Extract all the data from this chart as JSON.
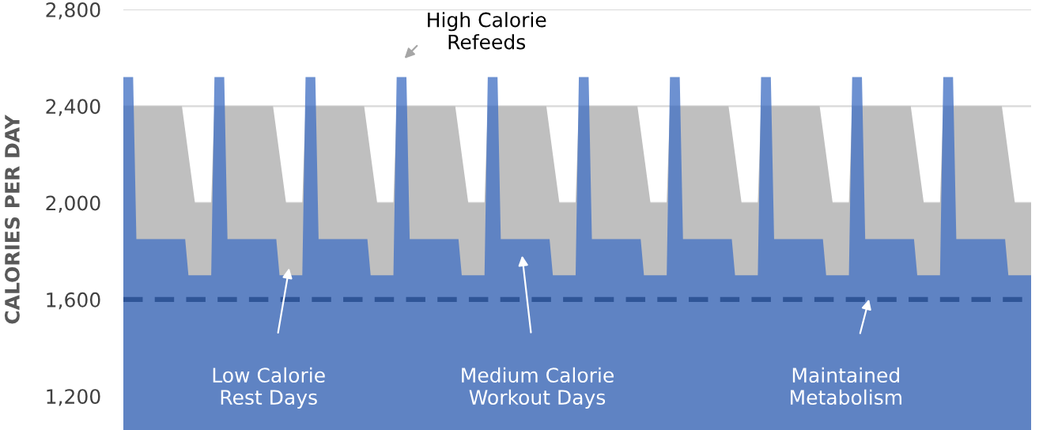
{
  "chart_data": {
    "type": "area",
    "ylabel": "CALORIES PER DAY",
    "categories": [
      null,
      null,
      null,
      null,
      null,
      null,
      null,
      null,
      null,
      null,
      null,
      null,
      null,
      null,
      null,
      null,
      null,
      null,
      null,
      null,
      null,
      null,
      null,
      null,
      null,
      null,
      null,
      null,
      null,
      null,
      null,
      null,
      null,
      null,
      null,
      null,
      null,
      null,
      null,
      null,
      null,
      null,
      null,
      null,
      null,
      null,
      null,
      null,
      null,
      null,
      null,
      null,
      null,
      null,
      null,
      null,
      null,
      null,
      null,
      null,
      null,
      null,
      null,
      null,
      null,
      null,
      null,
      null,
      null,
      null,
      null,
      null,
      null,
      null,
      null,
      null,
      null,
      null,
      null,
      null,
      null,
      null,
      null,
      null,
      null,
      null,
      null,
      null,
      null,
      null,
      null,
      null,
      null,
      null,
      null,
      null,
      null,
      null,
      null,
      null,
      null,
      null,
      null,
      null,
      null,
      null,
      null,
      null,
      null,
      null,
      null,
      null,
      null,
      null,
      null,
      null,
      null,
      null,
      null,
      null,
      null,
      null,
      null,
      null,
      null,
      null,
      null,
      null,
      null,
      null,
      null,
      null,
      null,
      null,
      null,
      null,
      null,
      null,
      null,
      null,
      null,
      null,
      null,
      null,
      null,
      null,
      null,
      null,
      null,
      null,
      null,
      null,
      null,
      null,
      null,
      null,
      null,
      null,
      null,
      null,
      null,
      null,
      null,
      null,
      null,
      null,
      null,
      null,
      null,
      null,
      null,
      null,
      null,
      null,
      null,
      null,
      null,
      null,
      null,
      null,
      null,
      null,
      null,
      null,
      null,
      null,
      null,
      null,
      null,
      null,
      null,
      null,
      null,
      null,
      null,
      null,
      null,
      null,
      null,
      null,
      null,
      null,
      null,
      null,
      null,
      null,
      null,
      null,
      null,
      null,
      null,
      null,
      null,
      null,
      null,
      null,
      null,
      null,
      null,
      null,
      null,
      null,
      null,
      null,
      null,
      null,
      null,
      null,
      null,
      null,
      null,
      null,
      null,
      null,
      null,
      null,
      null,
      null,
      null,
      null,
      null,
      null,
      null,
      null,
      null,
      null,
      null,
      null,
      null,
      null,
      null,
      null,
      null,
      null,
      null,
      null,
      null,
      null,
      null,
      null,
      null,
      null,
      null,
      null,
      null,
      null,
      null,
      null,
      null,
      null,
      null,
      null,
      null,
      null,
      null,
      null,
      null,
      null,
      null,
      null
    ],
    "ylim": [
      1060,
      2800
    ],
    "yticks": [
      {
        "value": 1200,
        "label": "1,200"
      },
      {
        "value": 1600,
        "label": "1,600"
      },
      {
        "value": 2000,
        "label": "2,000"
      },
      {
        "value": 2400,
        "label": "2,400"
      },
      {
        "value": 2800,
        "label": "2,800"
      }
    ],
    "tick_labels": "y",
    "grid": "y",
    "series": [
      {
        "color": "#bfbfbf",
        "values": [
          2400,
          2400,
          2400,
          2400,
          2400,
          2400,
          2400,
          2400,
          2400,
          2400,
          2400,
          2400,
          2400,
          2400,
          2400,
          2400,
          2400,
          2400,
          2400,
          2300,
          2200,
          2100,
          2000,
          2000,
          2000,
          2000,
          2000,
          2000,
          2400,
          2400,
          2400,
          2400,
          2400,
          2400,
          2400,
          2400,
          2400,
          2400,
          2400,
          2400,
          2400,
          2400,
          2400,
          2400,
          2400,
          2400,
          2400,
          2300,
          2200,
          2100,
          2000,
          2000,
          2000,
          2000,
          2000,
          2000,
          2400,
          2400,
          2400,
          2400,
          2400,
          2400,
          2400,
          2400,
          2400,
          2400,
          2400,
          2400,
          2400,
          2400,
          2400,
          2400,
          2400,
          2400,
          2400,
          2300,
          2200,
          2100,
          2000,
          2000,
          2000,
          2000,
          2000,
          2000,
          2400,
          2400,
          2400,
          2400,
          2400,
          2400,
          2400,
          2400,
          2400,
          2400,
          2400,
          2400,
          2400,
          2400,
          2400,
          2400,
          2400,
          2400,
          2400,
          2300,
          2200,
          2100,
          2000,
          2000,
          2000,
          2000,
          2000,
          2000,
          2400,
          2400,
          2400,
          2400,
          2400,
          2400,
          2400,
          2400,
          2400,
          2400,
          2400,
          2400,
          2400,
          2400,
          2400,
          2400,
          2400,
          2400,
          2400,
          2300,
          2200,
          2100,
          2000,
          2000,
          2000,
          2000,
          2000,
          2000,
          2400,
          2400,
          2400,
          2400,
          2400,
          2400,
          2400,
          2400,
          2400,
          2400,
          2400,
          2400,
          2400,
          2400,
          2400,
          2400,
          2400,
          2400,
          2400,
          2300,
          2200,
          2100,
          2000,
          2000,
          2000,
          2000,
          2000,
          2000,
          2400,
          2400,
          2400,
          2400,
          2400,
          2400,
          2400,
          2400,
          2400,
          2400,
          2400,
          2400,
          2400,
          2400,
          2400,
          2400,
          2400,
          2400,
          2400,
          2300,
          2200,
          2100,
          2000,
          2000,
          2000,
          2000,
          2000,
          2000,
          2400,
          2400,
          2400,
          2400,
          2400,
          2400,
          2400,
          2400,
          2400,
          2400,
          2400,
          2400,
          2400,
          2400,
          2400,
          2400,
          2400,
          2400,
          2400,
          2300,
          2200,
          2100,
          2000,
          2000,
          2000,
          2000,
          2000,
          2000,
          2400,
          2400,
          2400,
          2400,
          2400,
          2400,
          2400,
          2400,
          2400,
          2400,
          2400,
          2400,
          2400,
          2400,
          2400,
          2400,
          2400,
          2400,
          2400,
          2300,
          2200,
          2100,
          2000,
          2000,
          2000,
          2000,
          2000,
          2000,
          2400,
          2400,
          2400,
          2400,
          2400,
          2400,
          2400,
          2400,
          2400,
          2400,
          2400,
          2400,
          2400,
          2400,
          2400,
          2400,
          2400,
          2400,
          2400,
          2300,
          2200,
          2100,
          2000,
          2000,
          2000,
          2000,
          2000,
          2000
        ]
      },
      {
        "color": "#4472c4",
        "values": [
          2520,
          2520,
          2520,
          2520,
          1850,
          1850,
          1850,
          1850,
          1850,
          1850,
          1850,
          1850,
          1850,
          1850,
          1850,
          1850,
          1850,
          1850,
          1850,
          1850,
          1700,
          1700,
          1700,
          1700,
          1700,
          1700,
          1700,
          1700,
          2520,
          2520,
          2520,
          2520,
          1850,
          1850,
          1850,
          1850,
          1850,
          1850,
          1850,
          1850,
          1850,
          1850,
          1850,
          1850,
          1850,
          1850,
          1850,
          1850,
          1700,
          1700,
          1700,
          1700,
          1700,
          1700,
          1700,
          1700,
          2520,
          2520,
          2520,
          2520,
          1850,
          1850,
          1850,
          1850,
          1850,
          1850,
          1850,
          1850,
          1850,
          1850,
          1850,
          1850,
          1850,
          1850,
          1850,
          1850,
          1700,
          1700,
          1700,
          1700,
          1700,
          1700,
          1700,
          1700,
          2520,
          2520,
          2520,
          2520,
          1850,
          1850,
          1850,
          1850,
          1850,
          1850,
          1850,
          1850,
          1850,
          1850,
          1850,
          1850,
          1850,
          1850,
          1850,
          1850,
          1700,
          1700,
          1700,
          1700,
          1700,
          1700,
          1700,
          1700,
          2520,
          2520,
          2520,
          2520,
          1850,
          1850,
          1850,
          1850,
          1850,
          1850,
          1850,
          1850,
          1850,
          1850,
          1850,
          1850,
          1850,
          1850,
          1850,
          1850,
          1700,
          1700,
          1700,
          1700,
          1700,
          1700,
          1700,
          1700,
          2520,
          2520,
          2520,
          2520,
          1850,
          1850,
          1850,
          1850,
          1850,
          1850,
          1850,
          1850,
          1850,
          1850,
          1850,
          1850,
          1850,
          1850,
          1850,
          1850,
          1700,
          1700,
          1700,
          1700,
          1700,
          1700,
          1700,
          1700,
          2520,
          2520,
          2520,
          2520,
          1850,
          1850,
          1850,
          1850,
          1850,
          1850,
          1850,
          1850,
          1850,
          1850,
          1850,
          1850,
          1850,
          1850,
          1850,
          1850,
          1700,
          1700,
          1700,
          1700,
          1700,
          1700,
          1700,
          1700,
          2520,
          2520,
          2520,
          2520,
          1850,
          1850,
          1850,
          1850,
          1850,
          1850,
          1850,
          1850,
          1850,
          1850,
          1850,
          1850,
          1850,
          1850,
          1850,
          1850,
          1700,
          1700,
          1700,
          1700,
          1700,
          1700,
          1700,
          1700,
          2520,
          2520,
          2520,
          2520,
          1850,
          1850,
          1850,
          1850,
          1850,
          1850,
          1850,
          1850,
          1850,
          1850,
          1850,
          1850,
          1850,
          1850,
          1850,
          1850,
          1700,
          1700,
          1700,
          1700,
          1700,
          1700,
          1700,
          1700,
          2520,
          2520,
          2520,
          2520,
          1850,
          1850,
          1850,
          1850,
          1850,
          1850,
          1850,
          1850,
          1850,
          1850,
          1850,
          1850,
          1850,
          1850,
          1850,
          1850,
          1700,
          1700,
          1700,
          1700,
          1700,
          1700,
          1700,
          1700
        ]
      }
    ],
    "ref_lines": [
      {
        "axis": "y",
        "value": 1600,
        "color": "#2f5597",
        "line_style": "dashed"
      }
    ],
    "annotations": [
      "High Calorie\nRefeeds",
      "Low Calorie\nRest Days",
      "Medium Calorie\nWorkout Days",
      "Maintained\nMetabolism"
    ]
  }
}
